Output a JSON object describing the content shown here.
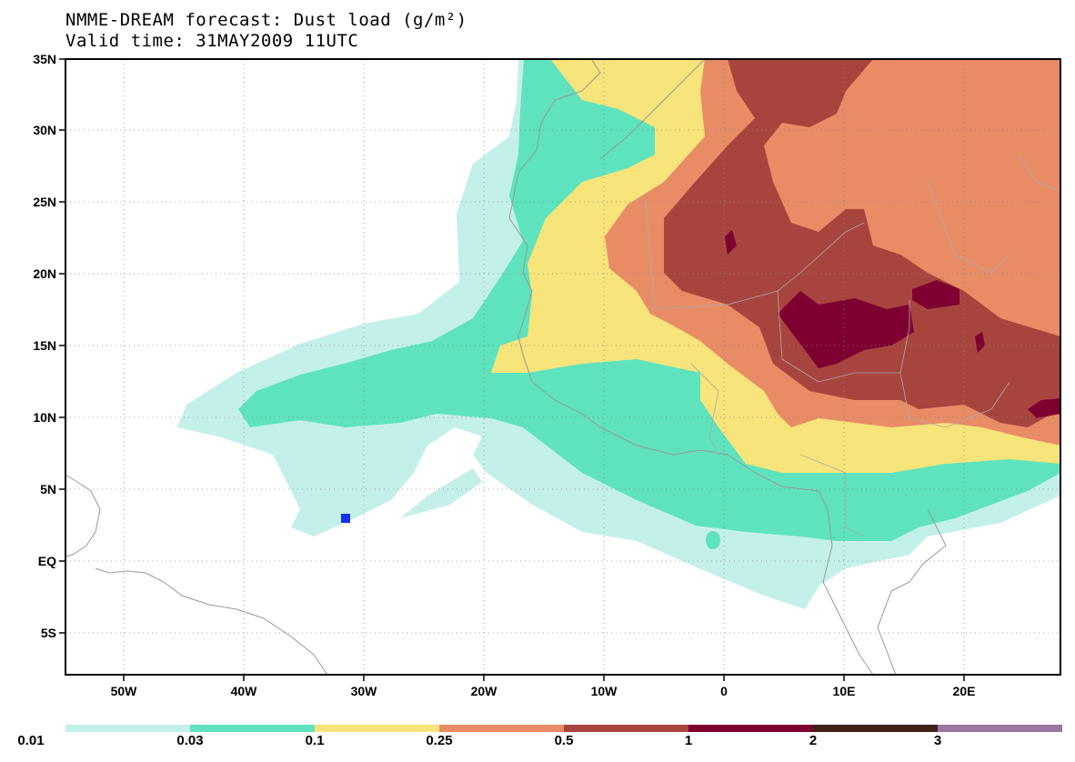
{
  "title": {
    "line1": "NMME-DREAM forecast: Dust load (g/m²)",
    "line2": "Valid time: 31MAY2009 11UTC"
  },
  "axes": {
    "lat_labels": [
      "35N",
      "30N",
      "25N",
      "20N",
      "15N",
      "10N",
      "5N",
      "EQ",
      "5S"
    ],
    "lon_labels": [
      "50W",
      "40W",
      "30W",
      "20W",
      "10W",
      "0",
      "10E",
      "20E"
    ]
  },
  "colorbar": {
    "labels": [
      "0.01",
      "0.03",
      "0.1",
      "0.25",
      "0.5",
      "1",
      "2",
      "3"
    ],
    "colors": [
      "#c4f0ea",
      "#5ee3be",
      "#f7e47a",
      "#e88c66",
      "#a8443e",
      "#7e0030",
      "#3e2214",
      "#9b72a2"
    ]
  },
  "levels": {
    "l1": "#c4f0ea",
    "l2": "#5ee3be",
    "l3": "#f7e47a",
    "l4": "#e88c66",
    "l5": "#a8443e",
    "l6": "#7e0030"
  },
  "marker": {
    "color": "#1133ee",
    "lat": 3,
    "lon": -32
  }
}
